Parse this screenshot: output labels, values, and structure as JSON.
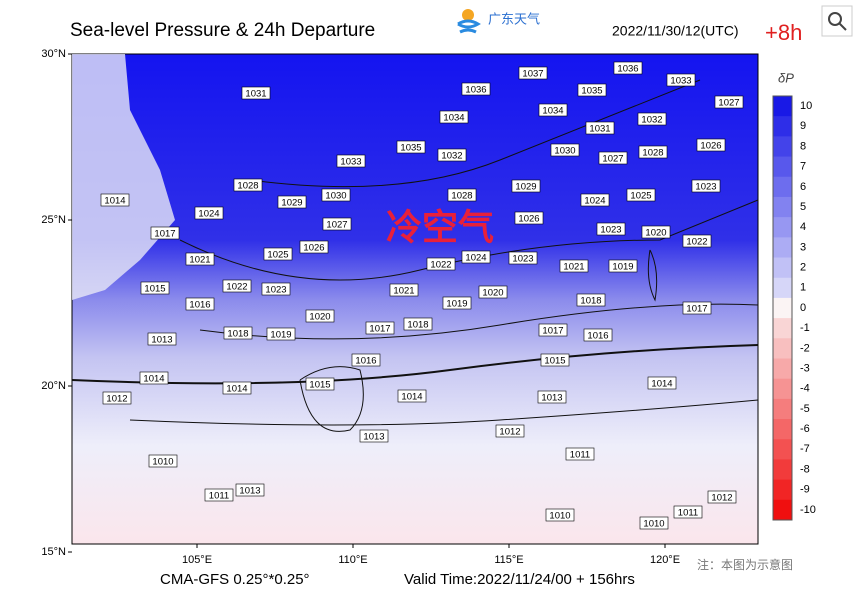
{
  "header": {
    "title": "Sea-level Pressure & 24h Departure",
    "logo_text": "广东天气",
    "timestamp": "2022/11/30/12(UTC)",
    "offset": "+8h"
  },
  "map": {
    "lat_ticks": [
      {
        "value": 30,
        "label": "30°N"
      },
      {
        "value": 25,
        "label": "25°N"
      },
      {
        "value": 20,
        "label": "20°N"
      },
      {
        "value": 15,
        "label": "15°N"
      }
    ],
    "lon_ticks": [
      {
        "value": 105,
        "label": "105°E"
      },
      {
        "value": 110,
        "label": "110°E"
      },
      {
        "value": 115,
        "label": "115°E"
      },
      {
        "value": 120,
        "label": "120°E"
      }
    ],
    "annotation": "冷空气",
    "isobar_labels": [
      1031,
      1037,
      1036,
      1036,
      1035,
      1033,
      1027,
      1034,
      1034,
      1031,
      1032,
      1035,
      1032,
      1030,
      1027,
      1028,
      1026,
      1033,
      1028,
      1029,
      1030,
      1028,
      1029,
      1024,
      1025,
      1023,
      1024,
      1027,
      1026,
      1023,
      1020,
      1022,
      1026,
      1025,
      1024,
      1022,
      1023,
      1021,
      1021,
      1019,
      1023,
      1022,
      1021,
      1019,
      1020,
      1018,
      1017,
      1015,
      1016,
      1017,
      1014,
      1018,
      1019,
      1020,
      1017,
      1018,
      1017,
      1016,
      1013,
      1016,
      1015,
      1014,
      1014,
      1015,
      1014,
      1014,
      1013,
      1012,
      1013,
      1012,
      1011,
      1010,
      1011,
      1013,
      1010,
      1010,
      1011,
      1012
    ]
  },
  "colorbar": {
    "label": "δP",
    "ticks": [
      10,
      9,
      8,
      7,
      6,
      5,
      4,
      3,
      2,
      1,
      0,
      -1,
      -2,
      -3,
      -4,
      -5,
      -6,
      -7,
      -8,
      -9,
      -10
    ]
  },
  "footer": {
    "model": "CMA-GFS  0.25°*0.25°",
    "valid_time": "Valid Time:2022/11/24/00 + 156hrs",
    "note": "注：本图为示意图"
  }
}
